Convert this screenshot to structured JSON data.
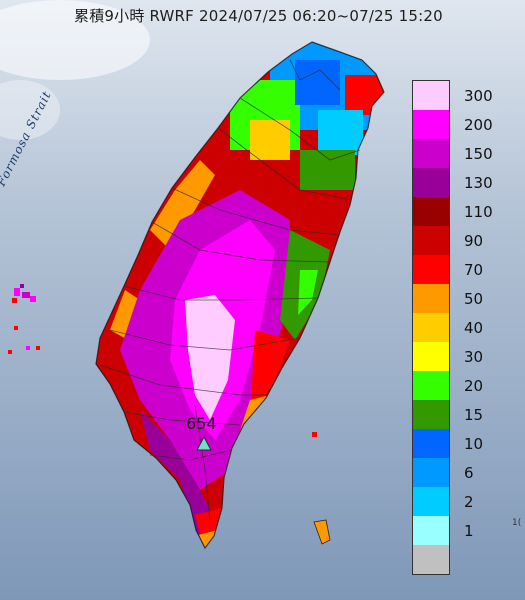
{
  "title": "累積9小時 RWRF 2024/07/25 06:20~07/25 15:20",
  "map_labels": {
    "strait": "Formosa Strait",
    "max_value": "654"
  },
  "legend": {
    "items": [
      {
        "label": "300",
        "color": "#ffccff"
      },
      {
        "label": "200",
        "color": "#ff00ff"
      },
      {
        "label": "150",
        "color": "#cc00cc"
      },
      {
        "label": "130",
        "color": "#990099"
      },
      {
        "label": "110",
        "color": "#990000"
      },
      {
        "label": "90",
        "color": "#cc0000"
      },
      {
        "label": "70",
        "color": "#ff0000"
      },
      {
        "label": "50",
        "color": "#ff9900"
      },
      {
        "label": "40",
        "color": "#ffcc00"
      },
      {
        "label": "30",
        "color": "#ffff00"
      },
      {
        "label": "20",
        "color": "#33ff00"
      },
      {
        "label": "15",
        "color": "#339900"
      },
      {
        "label": "10",
        "color": "#0066ff"
      },
      {
        "label": "6",
        "color": "#0099ff"
      },
      {
        "label": "2",
        "color": "#00ccff"
      },
      {
        "label": "1",
        "color": "#99ffff"
      },
      {
        "label": "",
        "color": "#c0c0c0"
      }
    ]
  },
  "edge_mark": "1("
}
